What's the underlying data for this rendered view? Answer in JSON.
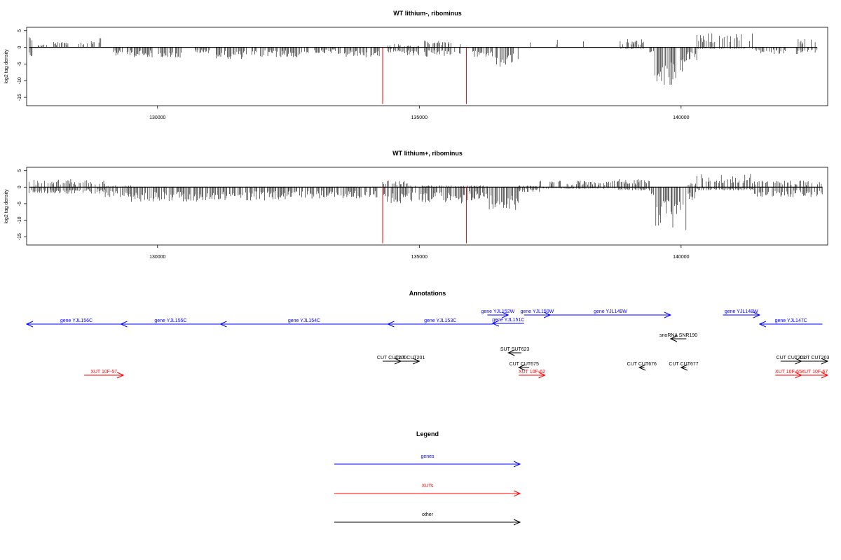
{
  "chart_data": [
    {
      "type": "bar",
      "title": "WT lithium-, ribominus",
      "ylabel": "log2 tag density",
      "xlabel": "",
      "xlim": [
        127500,
        142800
      ],
      "ylim": [
        -17.5,
        6
      ],
      "x_ticks": [
        130000,
        135000,
        140000
      ],
      "x_tick_labels": [
        "130000",
        "135000",
        "140000"
      ],
      "y_ticks": [
        5,
        0,
        -5,
        -10,
        -15
      ],
      "y_tick_labels": [
        "5",
        "0",
        "-5",
        "-10",
        "-15"
      ],
      "grid": false,
      "marker_color": "#ff0000",
      "marker_x": [
        134300,
        135900
      ],
      "segments": [
        {
          "from": 127550,
          "to": 127650,
          "value": -3,
          "plus": 3
        },
        {
          "from": 127700,
          "to": 127900,
          "value": 1,
          "plus": 1
        },
        {
          "from": 128000,
          "to": 128300,
          "value": 1,
          "plus": 2
        },
        {
          "from": 128500,
          "to": 128800,
          "value": 1.5,
          "plus": 2
        },
        {
          "from": 128880,
          "to": 128920,
          "value": 0,
          "plus": 3.5
        },
        {
          "from": 129150,
          "to": 129500,
          "value": -2.5,
          "plus": 0
        },
        {
          "from": 129500,
          "to": 129900,
          "value": -3,
          "plus": 0
        },
        {
          "from": 130000,
          "to": 130500,
          "value": -3.5,
          "plus": 0
        },
        {
          "from": 130700,
          "to": 131000,
          "value": -2,
          "plus": 0
        },
        {
          "from": 131100,
          "to": 131700,
          "value": -3.5,
          "plus": 0
        },
        {
          "from": 131800,
          "to": 132900,
          "value": -3,
          "plus": 0
        },
        {
          "from": 133000,
          "to": 133500,
          "value": -2,
          "plus": 0
        },
        {
          "from": 133550,
          "to": 134250,
          "value": -3,
          "plus": 0
        },
        {
          "from": 134400,
          "to": 134700,
          "value": -1.5,
          "plus": 1
        },
        {
          "from": 134700,
          "to": 135000,
          "value": -2.5,
          "plus": 0.5
        },
        {
          "from": 135100,
          "to": 135800,
          "value": -3,
          "plus": 2
        },
        {
          "from": 136000,
          "to": 136400,
          "value": -3,
          "plus": 0
        },
        {
          "from": 136400,
          "to": 136900,
          "value": -6,
          "plus": 0
        },
        {
          "from": 137100,
          "to": 137150,
          "value": 0,
          "plus": 2
        },
        {
          "from": 137600,
          "to": 137650,
          "value": 0,
          "plus": 2.5
        },
        {
          "from": 138100,
          "to": 138150,
          "value": 0,
          "plus": 3
        },
        {
          "from": 138800,
          "to": 138850,
          "value": 0,
          "plus": 2
        },
        {
          "from": 138850,
          "to": 139300,
          "value": -0.5,
          "plus": 2.5
        },
        {
          "from": 139400,
          "to": 139500,
          "value": -2,
          "plus": 0
        },
        {
          "from": 139500,
          "to": 140100,
          "value": -12,
          "plus": 0
        },
        {
          "from": 140100,
          "to": 140300,
          "value": -4,
          "plus": 0
        },
        {
          "from": 140300,
          "to": 141400,
          "value": -0.5,
          "plus": 4.5
        },
        {
          "from": 141400,
          "to": 142000,
          "value": -2,
          "plus": 0
        },
        {
          "from": 142200,
          "to": 142600,
          "value": -2,
          "plus": 2.5
        }
      ]
    },
    {
      "type": "bar",
      "title": "WT lithium+, ribominus",
      "ylabel": "log2 tag density",
      "xlabel": "",
      "xlim": [
        127500,
        142800
      ],
      "ylim": [
        -17.5,
        6
      ],
      "x_ticks": [
        130000,
        135000,
        140000
      ],
      "x_tick_labels": [
        "130000",
        "135000",
        "140000"
      ],
      "y_ticks": [
        5,
        0,
        -5,
        -10,
        -15
      ],
      "y_tick_labels": [
        "5",
        "0",
        "-5",
        "-10",
        "-15"
      ],
      "grid": false,
      "marker_color": "#ff0000",
      "marker_x": [
        134300,
        135900
      ],
      "segments": [
        {
          "from": 127550,
          "to": 129000,
          "value": -2,
          "plus": 2.5
        },
        {
          "from": 129000,
          "to": 129500,
          "value": -3,
          "plus": 0.5
        },
        {
          "from": 129500,
          "to": 131000,
          "value": -4.5,
          "plus": 0
        },
        {
          "from": 131000,
          "to": 132500,
          "value": -4,
          "plus": 0
        },
        {
          "from": 132500,
          "to": 134250,
          "value": -3.5,
          "plus": 0
        },
        {
          "from": 134300,
          "to": 134800,
          "value": -5,
          "plus": 2
        },
        {
          "from": 134800,
          "to": 135900,
          "value": -5,
          "plus": 0.5
        },
        {
          "from": 135900,
          "to": 136300,
          "value": -4,
          "plus": 0.5
        },
        {
          "from": 136300,
          "to": 136900,
          "value": -7,
          "plus": 0
        },
        {
          "from": 136900,
          "to": 137300,
          "value": -1.5,
          "plus": 0.5
        },
        {
          "from": 137300,
          "to": 138800,
          "value": -0.5,
          "plus": 2
        },
        {
          "from": 138800,
          "to": 139400,
          "value": -1,
          "plus": 2.5
        },
        {
          "from": 139400,
          "to": 139500,
          "value": -3,
          "plus": 0
        },
        {
          "from": 139500,
          "to": 140100,
          "value": -13,
          "plus": 0
        },
        {
          "from": 140100,
          "to": 140300,
          "value": -4,
          "plus": 1.5
        },
        {
          "from": 140300,
          "to": 141400,
          "value": -1,
          "plus": 4
        },
        {
          "from": 141400,
          "to": 142700,
          "value": -3,
          "plus": 2
        }
      ]
    }
  ],
  "annotations": {
    "title": "Annotations",
    "xlim": [
      127500,
      142800
    ],
    "genes": [
      {
        "label": "gene YJL156C",
        "from": 127500,
        "to": 129400,
        "dir": "left"
      },
      {
        "label": "gene YJL155C",
        "from": 129300,
        "to": 131200,
        "dir": "left"
      },
      {
        "label": "gene YJL154C",
        "from": 131200,
        "to": 134400,
        "dir": "left"
      },
      {
        "label": "gene YJL153C",
        "from": 134400,
        "to": 136400,
        "dir": "left"
      },
      {
        "label": "gene YJL152W",
        "from": 136300,
        "to": 136700,
        "dir": "right"
      },
      {
        "label": "gene YJL151C",
        "from": 136400,
        "to": 137000,
        "dir": "left"
      },
      {
        "label": "gene YJL150W",
        "from": 137000,
        "to": 137500,
        "dir": "right"
      },
      {
        "label": "gene YJL149W",
        "from": 137500,
        "to": 139800,
        "dir": "right"
      },
      {
        "label": "gene YJL148W",
        "from": 140800,
        "to": 141500,
        "dir": "right"
      },
      {
        "label": "gene YJL147C",
        "from": 141500,
        "to": 142700,
        "dir": "left"
      }
    ],
    "xuts": [
      {
        "label": "XUT 10F-57",
        "from": 128600,
        "to": 129350,
        "dir": "right"
      },
      {
        "label": "XUT 10F-62",
        "from": 136900,
        "to": 137400,
        "dir": "right"
      },
      {
        "label": "XUT 10F-65",
        "from": 141800,
        "to": 142300,
        "dir": "right"
      },
      {
        "label": "XUT 10F-67",
        "from": 142300,
        "to": 142800,
        "dir": "right"
      }
    ],
    "other": [
      {
        "label": "snoRNA SNR190",
        "from": 139800,
        "to": 140100,
        "dir": "left",
        "row": 1
      },
      {
        "label": "SUT SUT623",
        "from": 136700,
        "to": 136950,
        "dir": "left",
        "row": 2
      },
      {
        "label": "CUT CUT200",
        "from": 134300,
        "to": 134650,
        "dir": "right",
        "row": 3
      },
      {
        "label": "CUT CUT201",
        "from": 134650,
        "to": 135000,
        "dir": "right",
        "row": 3
      },
      {
        "label": "CUT CUT675",
        "from": 136900,
        "to": 137100,
        "dir": "left",
        "row": 4
      },
      {
        "label": "CUT CUT676",
        "from": 139200,
        "to": 139300,
        "dir": "left",
        "row": 4
      },
      {
        "label": "CUT CUT677",
        "from": 140000,
        "to": 140100,
        "dir": "left",
        "row": 4
      },
      {
        "label": "CUT CUT202",
        "from": 141900,
        "to": 142300,
        "dir": "right",
        "row": 3
      },
      {
        "label": "CUT CUT203",
        "from": 142300,
        "to": 142800,
        "dir": "right",
        "row": 3
      }
    ]
  },
  "legend": {
    "title": "Legend",
    "items": [
      {
        "label": "genes",
        "color": "#0000ff"
      },
      {
        "label": "XUTs",
        "color": "#ff0000"
      },
      {
        "label": "other",
        "color": "#000000"
      }
    ]
  }
}
